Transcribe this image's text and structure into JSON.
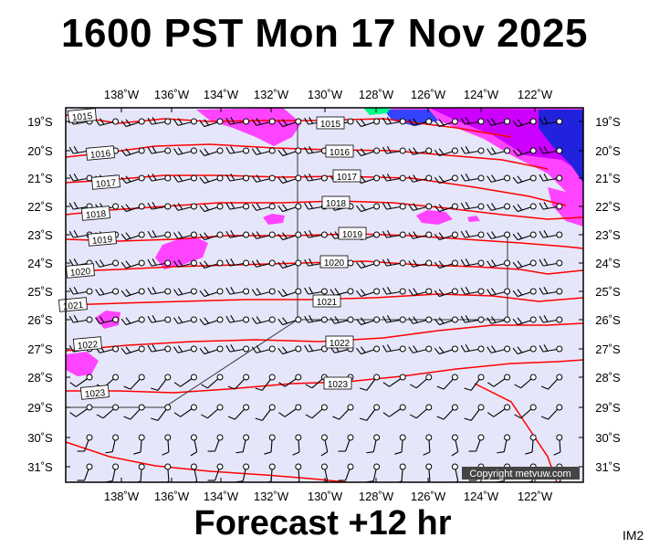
{
  "header": {
    "title": "1600 PST Mon 17 Nov 2025"
  },
  "footer": {
    "forecast": "Forecast +12 hr",
    "code": "IM2"
  },
  "copyright": "Copyright metvuw.com",
  "colors": {
    "background": "#e6e6fa",
    "isobar": "#ff0000",
    "rain_light": "#ff44ff",
    "rain_medium": "#cc00ff",
    "rain_heavy": "#2222dd",
    "rain_extreme": "#00ff88"
  },
  "map": {
    "lon_labels": [
      "138˚W",
      "136˚W",
      "134˚W",
      "132˚W",
      "130˚W",
      "128˚W",
      "126˚W",
      "124˚W",
      "122˚W"
    ],
    "lat_labels": [
      "19˚S",
      "20˚S",
      "21˚S",
      "22˚S",
      "23˚S",
      "24˚S",
      "25˚S",
      "26˚S",
      "27˚S",
      "28˚S",
      "29˚S",
      "30˚S",
      "31˚S"
    ],
    "isobar_labels": [
      "1015",
      "1016",
      "1017",
      "1018",
      "1019",
      "1020",
      "1021",
      "1022",
      "1023"
    ],
    "isobar_label_list": [
      "1015",
      "1015",
      "1016",
      "1016",
      "1017",
      "1017",
      "1018",
      "1018",
      "1019",
      "1019",
      "1020",
      "1020",
      "1021",
      "1021",
      "1022",
      "1022",
      "1023",
      "1023"
    ],
    "overlay_icon": "wind-barb-icon"
  }
}
